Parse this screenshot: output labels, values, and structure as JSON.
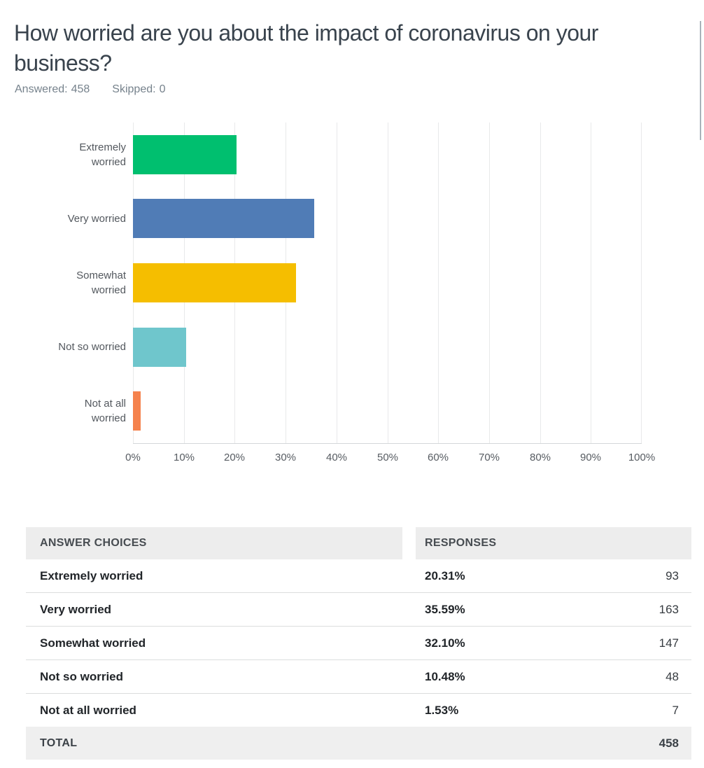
{
  "header": {
    "title": "How worried are you about the impact of coronavirus on your business?",
    "answered_label": "Answered:",
    "answered_value": "458",
    "skipped_label": "Skipped:",
    "skipped_value": "0"
  },
  "chart_data": {
    "type": "bar",
    "orientation": "horizontal",
    "title": "How worried are you about the impact of coronavirus on your business?",
    "categories": [
      "Extremely worried",
      "Very worried",
      "Somewhat worried",
      "Not so worried",
      "Not at all worried"
    ],
    "values": [
      20.31,
      35.59,
      32.1,
      10.48,
      1.53
    ],
    "value_unit": "%",
    "counts": [
      93,
      163,
      147,
      48,
      7
    ],
    "bar_colors": [
      "#00bf6f",
      "#507cb6",
      "#f5be00",
      "#6fc6cc",
      "#f5824d"
    ],
    "x_ticks": [
      "0%",
      "10%",
      "20%",
      "30%",
      "40%",
      "50%",
      "60%",
      "70%",
      "80%",
      "90%",
      "100%"
    ],
    "xlim": [
      0,
      100
    ],
    "grid": true,
    "legend": false,
    "gridline_color": "#e8e9ea"
  },
  "table": {
    "headers": [
      "ANSWER CHOICES",
      "RESPONSES"
    ],
    "rows": [
      {
        "choice": "Extremely worried",
        "percent": "20.31%",
        "count": "93"
      },
      {
        "choice": "Very worried",
        "percent": "35.59%",
        "count": "163"
      },
      {
        "choice": "Somewhat worried",
        "percent": "32.10%",
        "count": "147"
      },
      {
        "choice": "Not so worried",
        "percent": "10.48%",
        "count": "48"
      },
      {
        "choice": "Not at all worried",
        "percent": "1.53%",
        "count": "7"
      }
    ],
    "total_label": "TOTAL",
    "total_value": "458"
  }
}
